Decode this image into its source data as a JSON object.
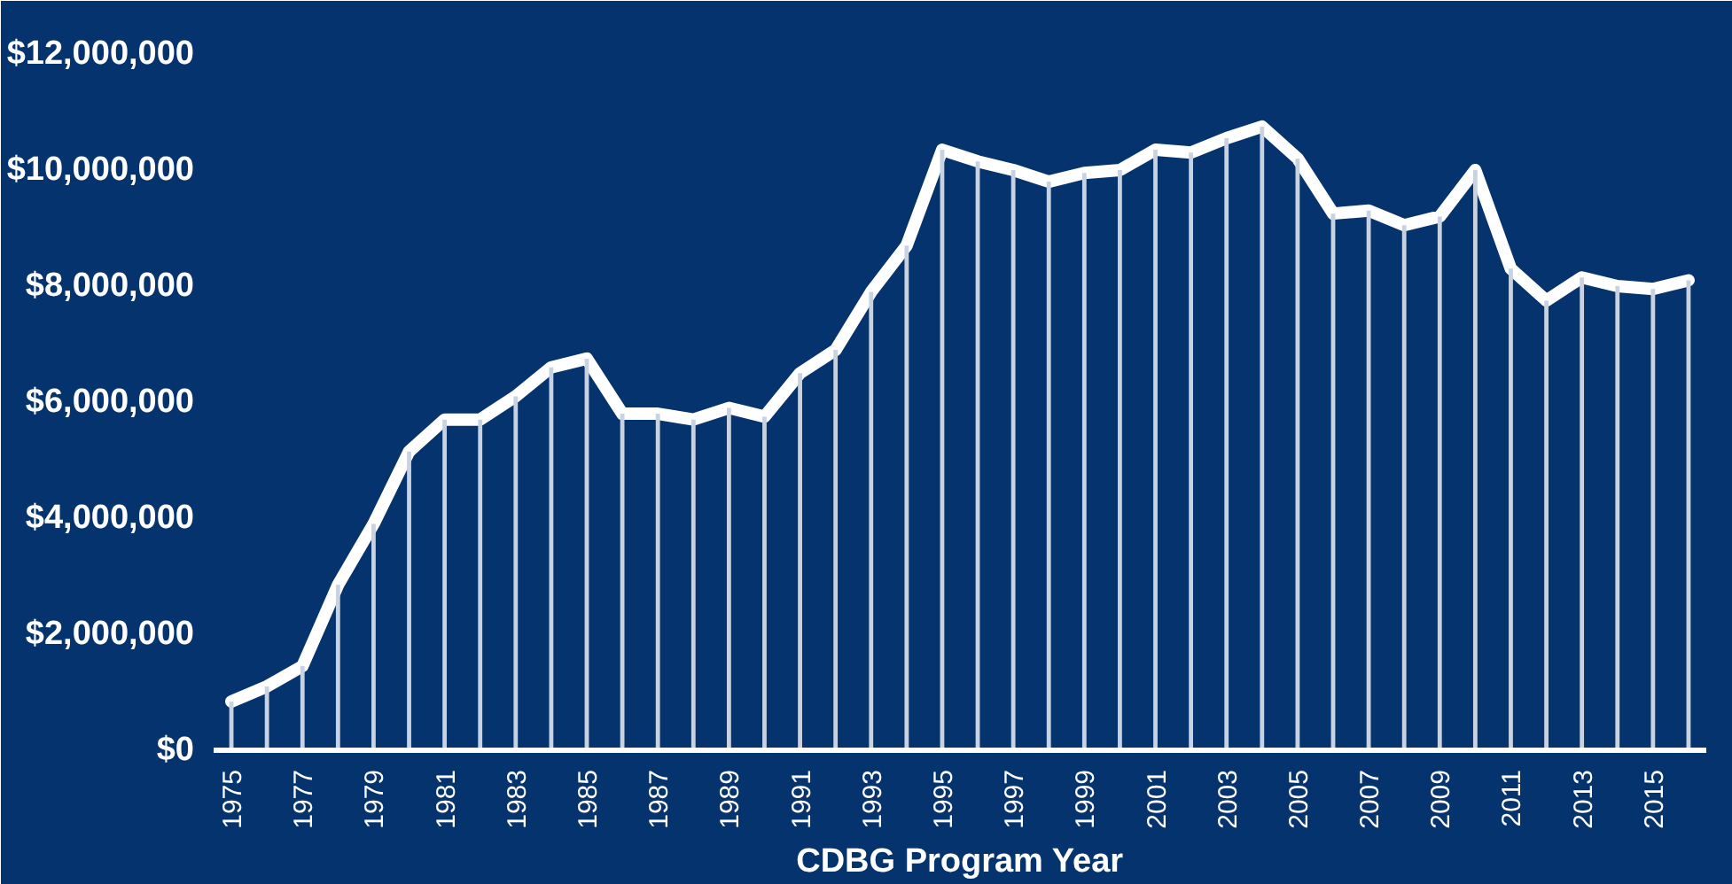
{
  "chart_data": {
    "type": "line",
    "xlabel": "CDBG Program Year",
    "categories": [
      "1975",
      null,
      "1977",
      null,
      "1979",
      null,
      "1981",
      null,
      "1983",
      null,
      "1985",
      null,
      "1987",
      null,
      "1989",
      null,
      "1991",
      null,
      "1993",
      null,
      "1995",
      null,
      "1997",
      null,
      "1999",
      null,
      "2001",
      null,
      "2003",
      null,
      "2005",
      null,
      "2007",
      null,
      "2009",
      null,
      "2011",
      null,
      "2013",
      null,
      "2015",
      null
    ],
    "series": [
      {
        "type": "bar",
        "color": "#c8d2e1",
        "values": [
          840000,
          1100000,
          1450000,
          2850000,
          3900000,
          5150000,
          5700000,
          5700000,
          6100000,
          6600000,
          6750000,
          5800000,
          5800000,
          5700000,
          5900000,
          5750000,
          6500000,
          6900000,
          7900000,
          8700000,
          10350000,
          10150000,
          10000000,
          9800000,
          9950000,
          10000000,
          10350000,
          10300000,
          10550000,
          10750000,
          10200000,
          9250000,
          9300000,
          9050000,
          9200000,
          10000000,
          8300000,
          7750000,
          8150000,
          8000000,
          7950000,
          8100000
        ]
      },
      {
        "color": "#ffffff",
        "values": [
          840000,
          1100000,
          1450000,
          2850000,
          3900000,
          5150000,
          5700000,
          5700000,
          6100000,
          6600000,
          6750000,
          5800000,
          5800000,
          5700000,
          5900000,
          5750000,
          6500000,
          6900000,
          7900000,
          8700000,
          10350000,
          10150000,
          10000000,
          9800000,
          9950000,
          10000000,
          10350000,
          10300000,
          10550000,
          10750000,
          10200000,
          9250000,
          9300000,
          9050000,
          9200000,
          10000000,
          8300000,
          7750000,
          8150000,
          8000000,
          7950000,
          8100000
        ]
      }
    ],
    "ylim": [
      0,
      12000000
    ],
    "yticks": [
      {
        "value": 0,
        "label": "$0"
      },
      {
        "value": 2000000,
        "label": "$2,000,000"
      },
      {
        "value": 4000000,
        "label": "$4,000,000"
      },
      {
        "value": 6000000,
        "label": "$6,000,000"
      },
      {
        "value": 8000000,
        "label": "$8,000,000"
      },
      {
        "value": 10000000,
        "label": "$10,000,000"
      },
      {
        "value": 12000000,
        "label": "$12,000,000"
      }
    ],
    "marker": "none",
    "line_style": "solid"
  }
}
